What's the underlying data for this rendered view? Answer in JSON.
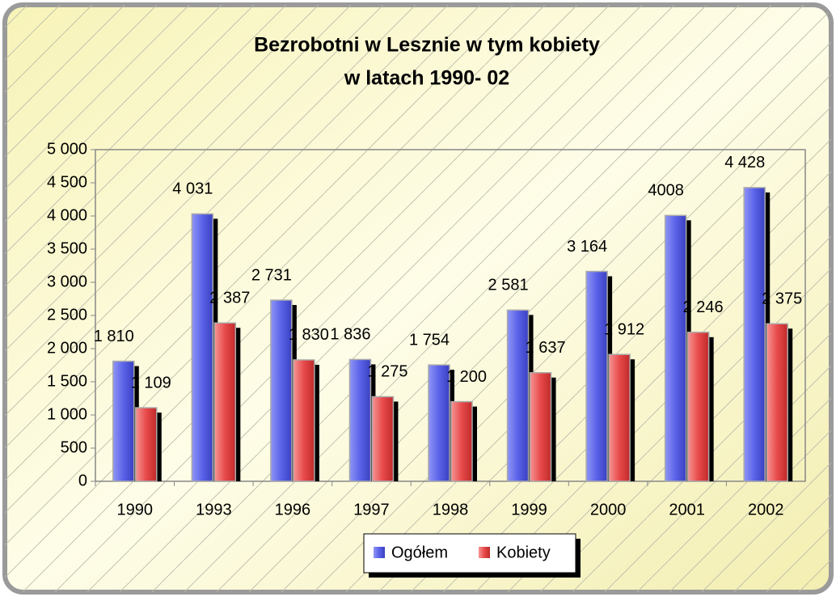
{
  "chart_data": {
    "type": "bar",
    "title": [
      "Bezrobotni w Lesznie w tym kobiety",
      "w latach 1990- 02"
    ],
    "categories": [
      "1990",
      "1993",
      "1996",
      "1997",
      "1998",
      "1999",
      "2000",
      "2001",
      "2002"
    ],
    "series": [
      {
        "name": "Ogółem",
        "color": "#5a62e8",
        "values": [
          1810,
          4031,
          2731,
          1836,
          1754,
          2581,
          3164,
          4008,
          4428
        ],
        "value_labels": [
          "1 810",
          "4 031",
          "2 731",
          "1 836",
          "1 754",
          "2 581",
          "3 164",
          "4008",
          "4 428"
        ]
      },
      {
        "name": "Kobiety",
        "color": "#e84a4a",
        "values": [
          1109,
          2387,
          1830,
          1275,
          1200,
          1637,
          1912,
          2246,
          2375
        ],
        "value_labels": [
          "1 109",
          "2 387",
          "1 830",
          "1 275",
          "1 200",
          "1 637",
          "1 912",
          "2 246",
          "2 375"
        ]
      }
    ],
    "ylim": [
      0,
      5000
    ],
    "yticks": [
      0,
      500,
      {
        "value": 1000,
        "label": "1 000"
      },
      {
        "value": 1500,
        "label": "1 500"
      },
      {
        "value": 2000,
        "label": "2 000"
      },
      {
        "value": 2500,
        "label": "2 500"
      },
      {
        "value": 3000,
        "label": "3 000"
      },
      {
        "value": 3500,
        "label": "3 500"
      },
      {
        "value": 4000,
        "label": "4 000"
      },
      {
        "value": 4500,
        "label": "4 500"
      },
      {
        "value": 5000,
        "label": "5 000"
      }
    ],
    "grid": false,
    "legend": "bottom"
  }
}
